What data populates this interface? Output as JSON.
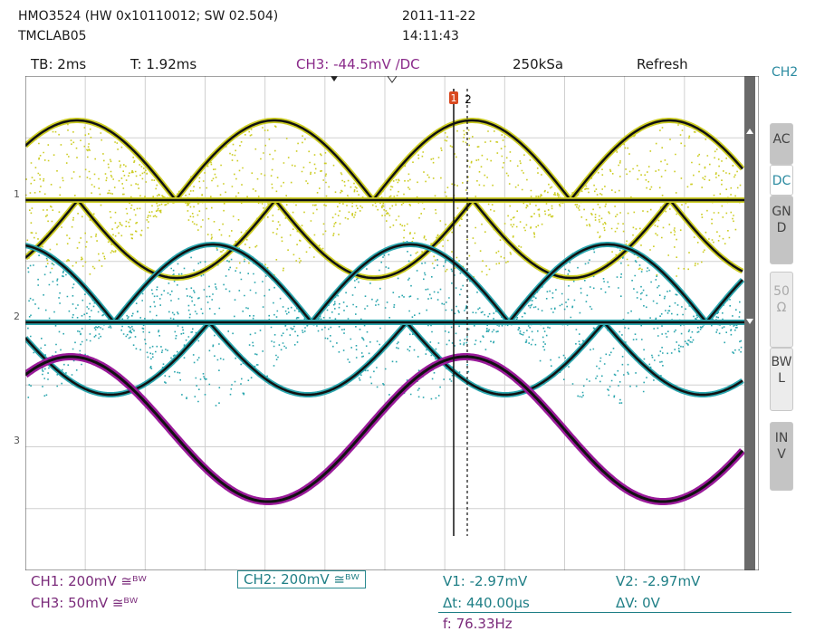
{
  "header": {
    "model": "HMO3524 (HW 0x10110012; SW 02.504)",
    "host": "TMCLAB05",
    "date": "2011-11-22",
    "time": "14:11:43"
  },
  "status": {
    "timebase": "TB: 2ms",
    "trigger_time": "T: 1.92ms",
    "trigger": "CH3: -44.5mV ∕DC",
    "sample_rate": "250kSa",
    "mode": "Refresh"
  },
  "side_menu": {
    "channel": "CH2",
    "coupling": [
      "AC",
      "DC",
      "GND",
      "50Ω"
    ],
    "bwl": "BWL",
    "inv": "INV"
  },
  "markers": {
    "ch1": "1",
    "ch2": "2",
    "ch3": "3",
    "cursor1": "1",
    "cursor2": "2"
  },
  "footer": {
    "ch1": "CH1: 200mV ≅ᴮᵂ",
    "ch2": "CH2: 200mV ≅ᴮᵂ",
    "ch3": "CH3: 50mV ≅ᴮᵂ",
    "v1": "V1: -2.97mV",
    "v2": "V2: -2.97mV",
    "dt": "Δt: 440.00µs",
    "dv": "ΔV: 0V",
    "f": "f: 76.33Hz"
  },
  "colors": {
    "ch1": "#cccc22",
    "ch2": "#2aa6ae",
    "ch3": "#9a1a9a",
    "trace": "#111111"
  }
}
